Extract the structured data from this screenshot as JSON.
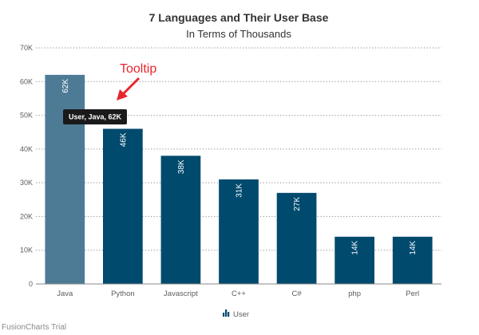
{
  "chart_data": {
    "type": "bar",
    "title": "7 Languages and Their User Base",
    "subtitle": "In Terms of Thousands",
    "categories": [
      "Java",
      "Python",
      "Javascript",
      "C++",
      "C#",
      "php",
      "Perl"
    ],
    "series": [
      {
        "name": "User",
        "values": [
          62,
          46,
          38,
          31,
          27,
          14,
          14
        ]
      }
    ],
    "value_labels": [
      "62K",
      "46K",
      "38K",
      "31K",
      "27K",
      "14K",
      "14K"
    ],
    "ylim": [
      0,
      70
    ],
    "yticks": [
      0,
      10,
      20,
      30,
      40,
      50,
      60,
      70
    ],
    "ytick_labels": [
      "0",
      "10K",
      "20K",
      "30K",
      "40K",
      "50K",
      "60K",
      "70K"
    ],
    "grid": true,
    "legend": "bottom-center",
    "highlighted_index": 0,
    "colors": {
      "bar": "#004a6e",
      "bar_highlight": "#4d7b96",
      "tooltip_bg": "#1a1a1a",
      "annotation": "#e8262f"
    }
  },
  "tooltip": {
    "text": "User, Java, 62K"
  },
  "annotation": {
    "text": "Tooltip"
  },
  "footer": {
    "trial_text": "FusionCharts Trial"
  }
}
